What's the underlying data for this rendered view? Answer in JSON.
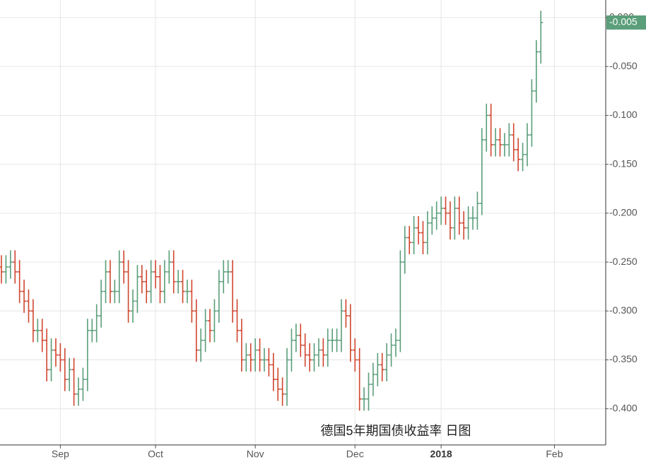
{
  "chart_data": {
    "type": "ohlc",
    "annotation": "德国5年期国债收益率 日图",
    "up_color": "#5a9e7a",
    "down_color": "#d0462f",
    "grid": true,
    "last_price_label": "-0.005",
    "ylim": [
      -0.437,
      0.018
    ],
    "xlim": [
      0,
      133
    ],
    "yticks": [
      {
        "value": -0.4,
        "label": "-0.400"
      },
      {
        "value": -0.35,
        "label": "-0.350"
      },
      {
        "value": -0.3,
        "label": "-0.300"
      },
      {
        "value": -0.25,
        "label": "-0.250"
      },
      {
        "value": -0.2,
        "label": "-0.200"
      },
      {
        "value": -0.15,
        "label": "-0.150"
      },
      {
        "value": -0.1,
        "label": "-0.100"
      },
      {
        "value": -0.05,
        "label": "-0.050"
      },
      {
        "value": 0,
        "label": "0.000"
      }
    ],
    "categories": [
      null,
      null,
      null,
      null,
      null,
      null,
      null,
      null,
      null,
      null,
      null,
      null,
      null,
      "Sep",
      null,
      null,
      null,
      null,
      null,
      null,
      null,
      null,
      null,
      null,
      null,
      null,
      null,
      null,
      null,
      null,
      null,
      null,
      null,
      null,
      "Oct",
      null,
      null,
      null,
      null,
      null,
      null,
      null,
      null,
      null,
      null,
      null,
      null,
      null,
      null,
      null,
      null,
      null,
      null,
      null,
      null,
      null,
      "Nov",
      null,
      null,
      null,
      null,
      null,
      null,
      null,
      null,
      null,
      null,
      null,
      null,
      null,
      null,
      null,
      null,
      null,
      null,
      null,
      null,
      null,
      "Dec",
      null,
      null,
      null,
      null,
      null,
      null,
      null,
      null,
      null,
      null,
      null,
      null,
      null,
      null,
      null,
      null,
      null,
      null,
      "2018",
      null,
      null,
      null,
      null,
      null,
      null,
      null,
      null,
      null,
      null,
      null,
      null,
      null,
      null,
      null,
      null,
      null,
      null,
      null,
      null,
      null,
      null,
      null,
      null,
      "Feb"
    ],
    "open": [
      -0.255,
      -0.26,
      -0.255,
      -0.25,
      -0.26,
      -0.28,
      -0.29,
      -0.3,
      -0.32,
      -0.32,
      -0.33,
      -0.36,
      -0.34,
      -0.345,
      -0.35,
      -0.37,
      -0.36,
      -0.385,
      -0.38,
      -0.37,
      -0.32,
      -0.32,
      -0.305,
      -0.28,
      -0.26,
      -0.28,
      -0.28,
      -0.25,
      -0.26,
      -0.3,
      -0.29,
      -0.265,
      -0.27,
      -0.28,
      -0.26,
      -0.265,
      -0.28,
      -0.26,
      -0.25,
      -0.27,
      -0.27,
      -0.28,
      -0.28,
      -0.3,
      -0.34,
      -0.33,
      -0.31,
      -0.32,
      -0.3,
      -0.27,
      -0.26,
      -0.26,
      -0.3,
      -0.32,
      -0.35,
      -0.345,
      -0.35,
      -0.34,
      -0.35,
      -0.35,
      -0.355,
      -0.37,
      -0.38,
      -0.385,
      -0.35,
      -0.33,
      -0.325,
      -0.335,
      -0.345,
      -0.35,
      -0.345,
      -0.34,
      -0.345,
      -0.33,
      -0.33,
      -0.33,
      -0.3,
      -0.305,
      -0.34,
      -0.35,
      -0.39,
      -0.39,
      -0.375,
      -0.365,
      -0.355,
      -0.36,
      -0.345,
      -0.335,
      -0.33,
      -0.25,
      -0.225,
      -0.23,
      -0.215,
      -0.22,
      -0.23,
      -0.21,
      -0.205,
      -0.2,
      -0.195,
      -0.2,
      -0.215,
      -0.195,
      -0.21,
      -0.215,
      -0.205,
      -0.205,
      -0.19,
      -0.125,
      -0.1,
      -0.13,
      -0.125,
      -0.13,
      -0.13,
      -0.12,
      -0.135,
      -0.145,
      -0.14,
      -0.12,
      -0.075,
      -0.035,
      null,
      null,
      null
    ],
    "high": [
      -0.243,
      -0.243,
      -0.238,
      -0.238,
      -0.248,
      -0.268,
      -0.278,
      -0.288,
      -0.308,
      -0.308,
      -0.318,
      -0.328,
      -0.328,
      -0.333,
      -0.338,
      -0.348,
      -0.348,
      -0.368,
      -0.358,
      -0.308,
      -0.308,
      -0.293,
      -0.268,
      -0.248,
      -0.248,
      -0.268,
      -0.238,
      -0.238,
      -0.248,
      -0.278,
      -0.253,
      -0.253,
      -0.258,
      -0.248,
      -0.248,
      -0.253,
      -0.248,
      -0.238,
      -0.238,
      -0.258,
      -0.258,
      -0.268,
      -0.268,
      -0.288,
      -0.318,
      -0.298,
      -0.298,
      -0.288,
      -0.258,
      -0.248,
      -0.248,
      -0.248,
      -0.288,
      -0.308,
      -0.333,
      -0.333,
      -0.328,
      -0.328,
      -0.338,
      -0.338,
      -0.343,
      -0.358,
      -0.368,
      -0.338,
      -0.318,
      -0.313,
      -0.313,
      -0.323,
      -0.333,
      -0.333,
      -0.328,
      -0.328,
      -0.318,
      -0.318,
      -0.318,
      -0.288,
      -0.288,
      -0.293,
      -0.328,
      -0.338,
      -0.378,
      -0.363,
      -0.353,
      -0.343,
      -0.343,
      -0.333,
      -0.323,
      -0.318,
      -0.238,
      -0.213,
      -0.213,
      -0.203,
      -0.203,
      -0.208,
      -0.198,
      -0.193,
      -0.188,
      -0.183,
      -0.183,
      -0.188,
      -0.183,
      -0.183,
      -0.198,
      -0.193,
      -0.193,
      -0.178,
      -0.113,
      -0.088,
      -0.088,
      -0.113,
      -0.113,
      -0.118,
      -0.108,
      -0.108,
      -0.123,
      -0.128,
      -0.108,
      -0.063,
      -0.023,
      0.007,
      null,
      null,
      null
    ],
    "low": [
      -0.272,
      -0.272,
      -0.267,
      -0.272,
      -0.292,
      -0.302,
      -0.312,
      -0.332,
      -0.332,
      -0.342,
      -0.372,
      -0.372,
      -0.357,
      -0.362,
      -0.382,
      -0.382,
      -0.397,
      -0.397,
      -0.392,
      -0.382,
      -0.332,
      -0.332,
      -0.317,
      -0.292,
      -0.292,
      -0.292,
      -0.292,
      -0.272,
      -0.312,
      -0.312,
      -0.302,
      -0.282,
      -0.292,
      -0.292,
      -0.277,
      -0.292,
      -0.292,
      -0.272,
      -0.282,
      -0.282,
      -0.292,
      -0.292,
      -0.312,
      -0.352,
      -0.352,
      -0.342,
      -0.332,
      -0.332,
      -0.312,
      -0.282,
      -0.272,
      -0.312,
      -0.332,
      -0.362,
      -0.362,
      -0.362,
      -0.362,
      -0.362,
      -0.362,
      -0.367,
      -0.382,
      -0.392,
      -0.397,
      -0.397,
      -0.362,
      -0.342,
      -0.347,
      -0.357,
      -0.362,
      -0.362,
      -0.357,
      -0.357,
      -0.357,
      -0.342,
      -0.342,
      -0.342,
      -0.317,
      -0.352,
      -0.362,
      -0.402,
      -0.402,
      -0.402,
      -0.387,
      -0.377,
      -0.372,
      -0.372,
      -0.357,
      -0.347,
      -0.342,
      -0.262,
      -0.242,
      -0.242,
      -0.232,
      -0.242,
      -0.242,
      -0.222,
      -0.217,
      -0.212,
      -0.212,
      -0.227,
      -0.227,
      -0.222,
      -0.227,
      -0.227,
      -0.217,
      -0.217,
      -0.202,
      -0.137,
      -0.142,
      -0.142,
      -0.142,
      -0.142,
      -0.142,
      -0.147,
      -0.157,
      -0.157,
      -0.152,
      -0.132,
      -0.087,
      -0.047,
      null,
      null,
      null
    ],
    "close": [
      -0.26,
      -0.255,
      -0.25,
      -0.26,
      -0.28,
      -0.29,
      -0.3,
      -0.32,
      -0.32,
      -0.33,
      -0.36,
      -0.34,
      -0.345,
      -0.35,
      -0.37,
      -0.36,
      -0.385,
      -0.38,
      -0.37,
      -0.32,
      -0.32,
      -0.305,
      -0.28,
      -0.26,
      -0.28,
      -0.28,
      -0.25,
      -0.26,
      -0.3,
      -0.29,
      -0.265,
      -0.27,
      -0.28,
      -0.26,
      -0.265,
      -0.28,
      -0.26,
      -0.25,
      -0.27,
      -0.27,
      -0.28,
      -0.28,
      -0.3,
      -0.34,
      -0.33,
      -0.31,
      -0.32,
      -0.3,
      -0.27,
      -0.26,
      -0.26,
      -0.3,
      -0.32,
      -0.35,
      -0.345,
      -0.35,
      -0.34,
      -0.35,
      -0.35,
      -0.355,
      -0.37,
      -0.38,
      -0.385,
      -0.35,
      -0.33,
      -0.325,
      -0.335,
      -0.345,
      -0.35,
      -0.345,
      -0.34,
      -0.345,
      -0.33,
      -0.33,
      -0.33,
      -0.3,
      -0.305,
      -0.34,
      -0.35,
      -0.39,
      -0.39,
      -0.375,
      -0.365,
      -0.355,
      -0.36,
      -0.345,
      -0.335,
      -0.33,
      -0.25,
      -0.225,
      -0.23,
      -0.215,
      -0.22,
      -0.23,
      -0.21,
      -0.205,
      -0.2,
      -0.195,
      -0.2,
      -0.215,
      -0.195,
      -0.21,
      -0.215,
      -0.205,
      -0.205,
      -0.19,
      -0.125,
      -0.1,
      -0.13,
      -0.125,
      -0.13,
      -0.13,
      -0.12,
      -0.135,
      -0.145,
      -0.14,
      -0.12,
      -0.075,
      -0.035,
      -0.005,
      null,
      null,
      null
    ]
  }
}
